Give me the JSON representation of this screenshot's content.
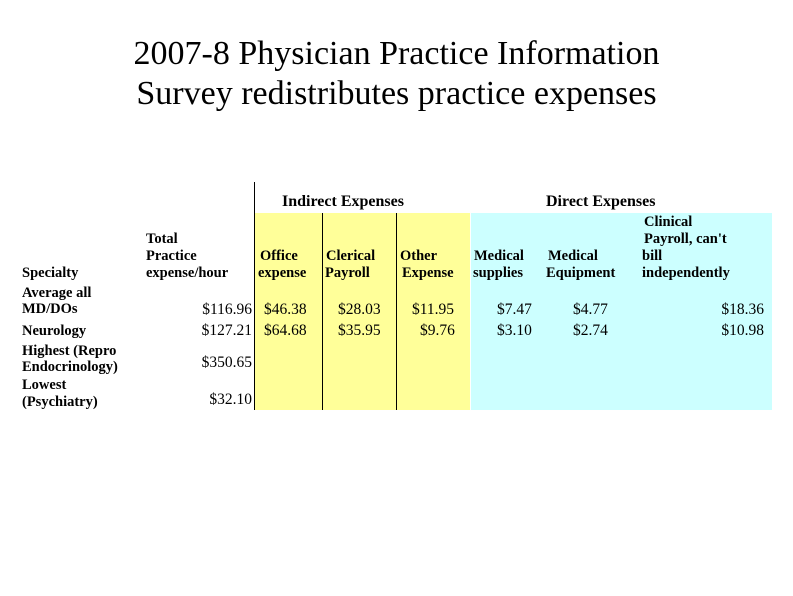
{
  "slide": {
    "title_line1": "2007-8 Physician Practice Information",
    "title_line2": "Survey redistributes practice expenses"
  },
  "colors": {
    "indirect_band": "#ffff99",
    "direct_band": "#ccffff"
  },
  "table": {
    "group_headers": {
      "indirect": "Indirect Expenses",
      "direct": "Direct Expenses"
    },
    "headers": {
      "specialty": "Specialty",
      "total": [
        "Total",
        "Practice",
        "expense/hour"
      ],
      "office": [
        "Office",
        "expense"
      ],
      "clerical": [
        "Clerical",
        "Payroll"
      ],
      "other": [
        "Other",
        "Expense"
      ],
      "med_supplies": [
        "Medical",
        "supplies"
      ],
      "med_equipment": [
        "Medical",
        "Equipment"
      ],
      "clinical": [
        "Clinical",
        "Payroll, can't",
        "bill",
        "independently"
      ]
    },
    "rows": [
      {
        "specialty": [
          "Average all",
          "MD/DOs"
        ],
        "total": "$116.96",
        "office": "$46.38",
        "clerical": "$28.03",
        "other": "$11.95",
        "med_supplies": "$7.47",
        "med_equipment": "$4.77",
        "clinical": "$18.36"
      },
      {
        "specialty": [
          "Neurology"
        ],
        "total": "$127.21",
        "office": "$64.68",
        "clerical": "$35.95",
        "other": "$9.76",
        "med_supplies": "$3.10",
        "med_equipment": "$2.74",
        "clinical": "$10.98"
      },
      {
        "specialty": [
          "Highest (Repro",
          "Endocrinology)"
        ],
        "total": "$350.65"
      },
      {
        "specialty": [
          "Lowest",
          "(Psychiatry)"
        ],
        "total": "$32.10"
      }
    ]
  }
}
